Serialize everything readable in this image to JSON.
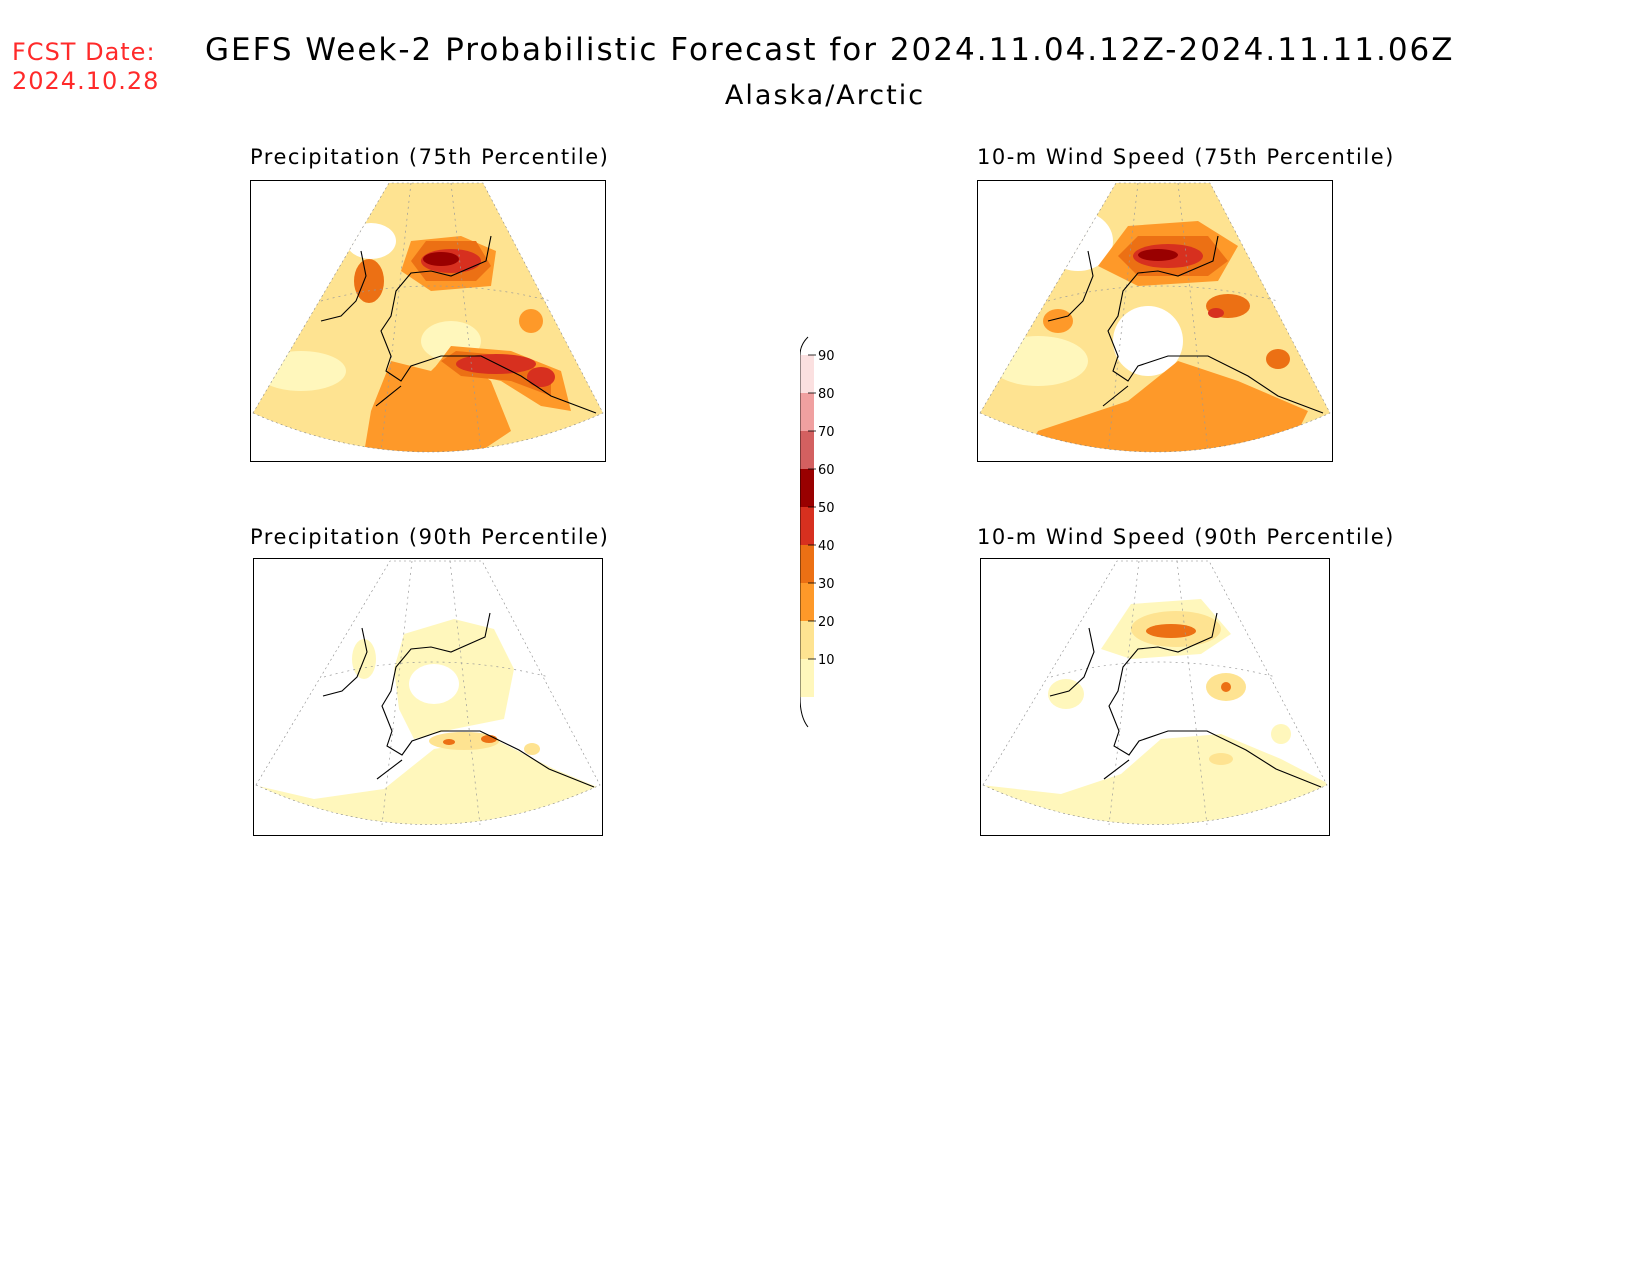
{
  "header": {
    "fcst_label": "FCST Date:",
    "fcst_date": "2024.10.28",
    "title": "GEFS Week-2 Probabilistic Forecast for 2024.11.04.12Z-2024.11.11.06Z",
    "region": "Alaska/Arctic"
  },
  "panels": [
    {
      "title": "Precipitation (75th Percentile)"
    },
    {
      "title": "10-m Wind Speed (75th Percentile)"
    },
    {
      "title": "Precipitation (90th Percentile)"
    },
    {
      "title": "10-m Wind Speed (90th Percentile)"
    }
  ],
  "colorbar": {
    "levels": [
      "10",
      "20",
      "30",
      "40",
      "50",
      "60",
      "70",
      "80",
      "90"
    ],
    "colors": [
      "#fff7bc",
      "#fee391",
      "#fe9929",
      "#ec7014",
      "#d7301f",
      "#990000",
      "#d36060",
      "#f0a0a0",
      "#fbe0e0"
    ]
  }
}
